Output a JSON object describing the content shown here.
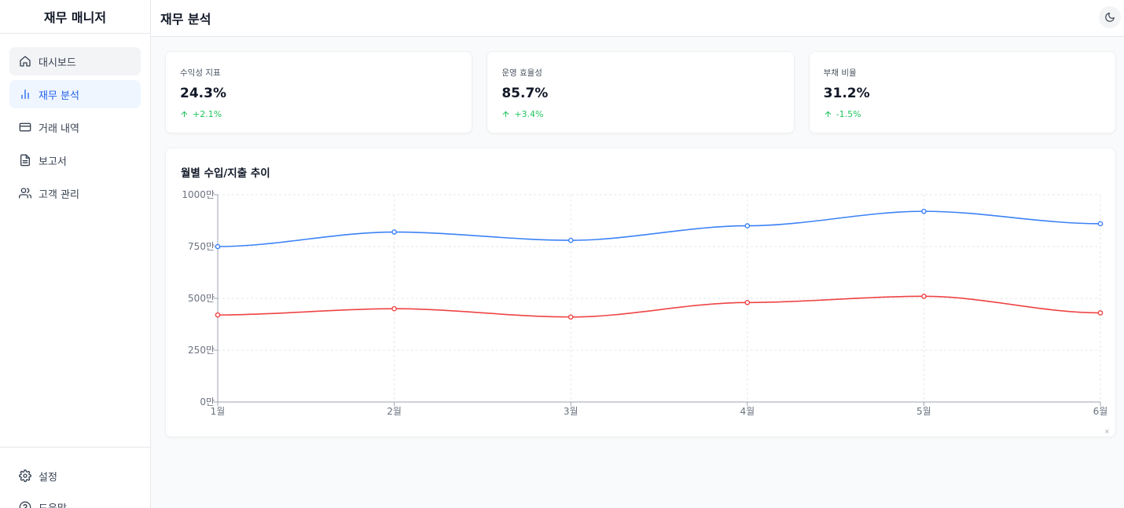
{
  "app": {
    "brand": "재무 매니저"
  },
  "sidebar": {
    "items": [
      {
        "label": "대시보드",
        "icon": "home-icon"
      },
      {
        "label": "재무 분석",
        "icon": "bar-chart-icon"
      },
      {
        "label": "거래 내역",
        "icon": "credit-card-icon"
      },
      {
        "label": "보고서",
        "icon": "document-icon"
      },
      {
        "label": "고객 관리",
        "icon": "users-icon"
      }
    ],
    "bottom_items": [
      {
        "label": "설정",
        "icon": "gear-icon"
      },
      {
        "label": "도움말",
        "icon": "help-circle-icon"
      }
    ]
  },
  "header": {
    "title": "재무 분석",
    "theme_toggle_icon": "moon-icon"
  },
  "cards": [
    {
      "label": "수익성 지표",
      "value": "24.3%",
      "change": "+2.1%"
    },
    {
      "label": "운영 효율성",
      "value": "85.7%",
      "change": "+3.4%"
    },
    {
      "label": "부채 비율",
      "value": "31.2%",
      "change": "-1.5%"
    }
  ],
  "colors": {
    "accent": "#2563eb",
    "positive": "#22c55e",
    "income_line": "#3b82f6",
    "expense_line": "#ef4444"
  },
  "chart_data": {
    "type": "line",
    "title": "월별 수입/지출 추이",
    "categories": [
      "1월",
      "2월",
      "3월",
      "4월",
      "5월",
      "6월"
    ],
    "y_ticks": [
      "0만",
      "250만",
      "500만",
      "750만",
      "1000만"
    ],
    "ylim": [
      0,
      1000
    ],
    "grid": true,
    "series": [
      {
        "values": [
          750,
          820,
          780,
          850,
          920,
          860
        ],
        "color": "#3b82f6"
      },
      {
        "values": [
          420,
          450,
          410,
          480,
          510,
          430
        ],
        "color": "#ef4444"
      }
    ]
  }
}
